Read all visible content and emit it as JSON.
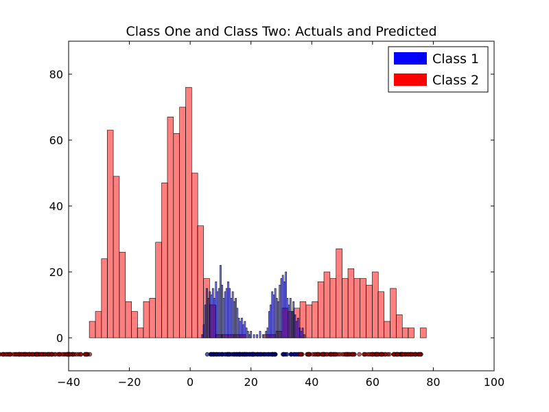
{
  "chart_data": {
    "type": "bar",
    "title": "Class One and Class Two: Actuals and Predicted",
    "xlabel": "",
    "ylabel": "",
    "xlim": [
      -40,
      100
    ],
    "ylim": [
      -10,
      90
    ],
    "xticks": [
      -40,
      -20,
      0,
      20,
      40,
      60,
      80,
      100
    ],
    "xtick_labels": [
      "−40",
      "−20",
      "0",
      "20",
      "40",
      "60",
      "80",
      "100"
    ],
    "yticks": [
      0,
      20,
      40,
      60,
      80
    ],
    "ytick_labels": [
      "0",
      "20",
      "40",
      "60",
      "80"
    ],
    "grid": false,
    "legend_position": "top-right",
    "series": [
      {
        "name": "Class 1",
        "kind": "histogram",
        "color": "#0000ff",
        "bin_width": 0.48,
        "bins": [
          {
            "x": 4.0,
            "y": 1
          },
          {
            "x": 4.5,
            "y": 4
          },
          {
            "x": 5.0,
            "y": 10
          },
          {
            "x": 5.5,
            "y": 15
          },
          {
            "x": 6.0,
            "y": 12
          },
          {
            "x": 6.5,
            "y": 14
          },
          {
            "x": 7.0,
            "y": 13
          },
          {
            "x": 7.5,
            "y": 15
          },
          {
            "x": 8.0,
            "y": 12
          },
          {
            "x": 8.5,
            "y": 17
          },
          {
            "x": 9.0,
            "y": 14
          },
          {
            "x": 9.5,
            "y": 15
          },
          {
            "x": 10.0,
            "y": 22
          },
          {
            "x": 10.5,
            "y": 16
          },
          {
            "x": 11.0,
            "y": 12
          },
          {
            "x": 11.5,
            "y": 14
          },
          {
            "x": 12.0,
            "y": 15
          },
          {
            "x": 12.5,
            "y": 17
          },
          {
            "x": 13.0,
            "y": 15
          },
          {
            "x": 13.5,
            "y": 12
          },
          {
            "x": 14.0,
            "y": 14
          },
          {
            "x": 14.5,
            "y": 11
          },
          {
            "x": 15.0,
            "y": 12
          },
          {
            "x": 15.5,
            "y": 9
          },
          {
            "x": 16.0,
            "y": 6
          },
          {
            "x": 16.5,
            "y": 5
          },
          {
            "x": 17.0,
            "y": 6
          },
          {
            "x": 17.5,
            "y": 4
          },
          {
            "x": 18.0,
            "y": 5
          },
          {
            "x": 18.5,
            "y": 3
          },
          {
            "x": 19.0,
            "y": 2
          },
          {
            "x": 19.5,
            "y": 1
          },
          {
            "x": 20.0,
            "y": 2
          },
          {
            "x": 21.0,
            "y": 1
          },
          {
            "x": 22.0,
            "y": 1
          },
          {
            "x": 23.0,
            "y": 2
          },
          {
            "x": 24.0,
            "y": 1
          },
          {
            "x": 25.0,
            "y": 2
          },
          {
            "x": 25.5,
            "y": 3
          },
          {
            "x": 26.0,
            "y": 8
          },
          {
            "x": 26.5,
            "y": 10
          },
          {
            "x": 27.0,
            "y": 14
          },
          {
            "x": 27.5,
            "y": 13
          },
          {
            "x": 28.0,
            "y": 15
          },
          {
            "x": 28.5,
            "y": 12
          },
          {
            "x": 29.0,
            "y": 11
          },
          {
            "x": 29.5,
            "y": 16
          },
          {
            "x": 30.0,
            "y": 18
          },
          {
            "x": 30.5,
            "y": 19
          },
          {
            "x": 31.0,
            "y": 17
          },
          {
            "x": 31.5,
            "y": 20
          },
          {
            "x": 32.0,
            "y": 12
          },
          {
            "x": 32.5,
            "y": 10
          },
          {
            "x": 33.0,
            "y": 12
          },
          {
            "x": 33.5,
            "y": 8
          },
          {
            "x": 34.0,
            "y": 11
          },
          {
            "x": 34.5,
            "y": 7
          },
          {
            "x": 35.0,
            "y": 5
          },
          {
            "x": 35.5,
            "y": 6
          },
          {
            "x": 36.0,
            "y": 3
          },
          {
            "x": 36.5,
            "y": 2
          },
          {
            "x": 37.0,
            "y": 3
          },
          {
            "x": 37.5,
            "y": 1
          }
        ]
      },
      {
        "name": "Class 2",
        "kind": "histogram",
        "color": "#ff0000",
        "bin_width": 1.98,
        "bins": [
          {
            "x": -32.2,
            "y": 5
          },
          {
            "x": -30.2,
            "y": 8
          },
          {
            "x": -28.2,
            "y": 24
          },
          {
            "x": -26.3,
            "y": 63
          },
          {
            "x": -24.3,
            "y": 49
          },
          {
            "x": -22.3,
            "y": 26
          },
          {
            "x": -20.3,
            "y": 11
          },
          {
            "x": -18.3,
            "y": 8
          },
          {
            "x": -16.4,
            "y": 3
          },
          {
            "x": -14.4,
            "y": 11
          },
          {
            "x": -12.4,
            "y": 12
          },
          {
            "x": -10.4,
            "y": 29
          },
          {
            "x": -8.4,
            "y": 47
          },
          {
            "x": -6.5,
            "y": 67
          },
          {
            "x": -4.5,
            "y": 62
          },
          {
            "x": -2.5,
            "y": 70
          },
          {
            "x": -0.5,
            "y": 76
          },
          {
            "x": 1.5,
            "y": 50
          },
          {
            "x": 3.4,
            "y": 34
          },
          {
            "x": 5.4,
            "y": 18
          },
          {
            "x": 7.4,
            "y": 10
          },
          {
            "x": 9.4,
            "y": 1
          },
          {
            "x": 11.4,
            "y": 1
          },
          {
            "x": 13.3,
            "y": 1
          },
          {
            "x": 15.3,
            "y": 1
          },
          {
            "x": 17.3,
            "y": 1
          },
          {
            "x": 19.3,
            "y": 0
          },
          {
            "x": 21.3,
            "y": 0
          },
          {
            "x": 23.2,
            "y": 0
          },
          {
            "x": 25.2,
            "y": 1
          },
          {
            "x": 27.2,
            "y": 1
          },
          {
            "x": 29.2,
            "y": 2
          },
          {
            "x": 31.2,
            "y": 9
          },
          {
            "x": 33.1,
            "y": 8
          },
          {
            "x": 35.1,
            "y": 9
          },
          {
            "x": 37.1,
            "y": 11
          },
          {
            "x": 39.1,
            "y": 10
          },
          {
            "x": 41.1,
            "y": 11
          },
          {
            "x": 43.0,
            "y": 17
          },
          {
            "x": 45.0,
            "y": 20
          },
          {
            "x": 47.0,
            "y": 18
          },
          {
            "x": 49.0,
            "y": 27
          },
          {
            "x": 51.0,
            "y": 18
          },
          {
            "x": 52.9,
            "y": 21
          },
          {
            "x": 54.9,
            "y": 18
          },
          {
            "x": 56.9,
            "y": 18
          },
          {
            "x": 58.9,
            "y": 16
          },
          {
            "x": 60.9,
            "y": 20
          },
          {
            "x": 62.8,
            "y": 14
          },
          {
            "x": 64.8,
            "y": 5
          },
          {
            "x": 66.8,
            "y": 15
          },
          {
            "x": 68.8,
            "y": 7
          },
          {
            "x": 70.8,
            "y": 3
          },
          {
            "x": 72.7,
            "y": 3
          },
          {
            "x": 74.7,
            "y": 0
          },
          {
            "x": 76.7,
            "y": 3
          }
        ]
      }
    ],
    "strip_points": {
      "y": -5,
      "groups": [
        {
          "series": "Class 2",
          "color": "#8b0000",
          "x_range": [
            -33,
            5
          ]
        },
        {
          "series": "Class 1",
          "color": "#000080",
          "x_range": [
            5,
            36
          ]
        },
        {
          "series": "Class 2",
          "color": "#8b0000",
          "x_range": [
            36,
            76
          ]
        }
      ]
    }
  },
  "legend": {
    "items": [
      {
        "label": "Class 1",
        "color": "#0000ff"
      },
      {
        "label": "Class 2",
        "color": "#ff0000"
      }
    ]
  }
}
